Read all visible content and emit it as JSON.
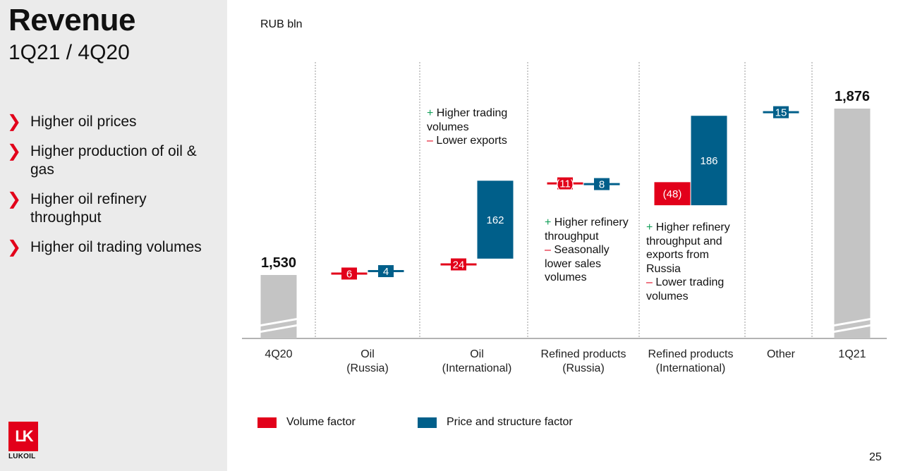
{
  "slide": {
    "title": "Revenue",
    "subtitle": "1Q21 / 4Q20",
    "bullets": [
      "Higher oil prices",
      "Higher production of oil & gas",
      "Higher oil refinery throughput",
      "Higher oil trading volumes"
    ],
    "logo_text": "LUKOIL",
    "page_number": "25",
    "colors": {
      "volume": "#e2001a",
      "price": "#005f8a",
      "total": "#c4c4c4",
      "plus": "#15a05a",
      "minus": "#e2001a"
    }
  },
  "chart_data": {
    "type": "bar",
    "subtype": "waterfall",
    "unit": "RUB bln",
    "start": {
      "label": "4Q20",
      "value": 1530,
      "value_label": "1,530"
    },
    "end": {
      "label": "1Q21",
      "value": 1876,
      "value_label": "1,876"
    },
    "categories": [
      [
        "4Q20"
      ],
      [
        "Oil",
        "(Russia)"
      ],
      [
        "Oil",
        "(International)"
      ],
      [
        "Refined products",
        "(Russia)"
      ],
      [
        "Refined products",
        "(International)"
      ],
      [
        "Other"
      ],
      [
        "1Q21"
      ]
    ],
    "steps": [
      {
        "category": 1,
        "factor": "volume",
        "value": 6,
        "label": "6"
      },
      {
        "category": 1,
        "factor": "price",
        "value": 4,
        "label": "4"
      },
      {
        "category": 2,
        "factor": "volume",
        "value": 24,
        "label": "24"
      },
      {
        "category": 2,
        "factor": "price",
        "value": 162,
        "label": "162"
      },
      {
        "category": 3,
        "factor": "volume",
        "value": -11,
        "label": "(11)"
      },
      {
        "category": 3,
        "factor": "price",
        "value": 8,
        "label": "8"
      },
      {
        "category": 4,
        "factor": "volume",
        "value": -48,
        "label": "(48)"
      },
      {
        "category": 4,
        "factor": "price",
        "value": 186,
        "label": "186"
      },
      {
        "category": 5,
        "factor": "price",
        "value": 15,
        "label": "15"
      }
    ],
    "legend": [
      {
        "factor": "volume",
        "label": "Volume factor"
      },
      {
        "factor": "price",
        "label": "Price and structure factor"
      }
    ],
    "annotations": [
      {
        "category": 2,
        "lines": [
          {
            "sign": "+",
            "text": "Higher trading"
          },
          {
            "sign": "",
            "text": "volumes"
          },
          {
            "sign": "–",
            "text": "Lower exports"
          }
        ]
      },
      {
        "category": 3,
        "lines": [
          {
            "sign": "+",
            "text": "Higher refinery"
          },
          {
            "sign": "",
            "text": "throughput"
          },
          {
            "sign": "–",
            "text": "Seasonally"
          },
          {
            "sign": "",
            "text": "lower sales"
          },
          {
            "sign": "",
            "text": "volumes"
          }
        ]
      },
      {
        "category": 4,
        "lines": [
          {
            "sign": "+",
            "text": "Higher refinery"
          },
          {
            "sign": "",
            "text": "throughput and"
          },
          {
            "sign": "",
            "text": "exports from"
          },
          {
            "sign": "",
            "text": "Russia"
          },
          {
            "sign": "–",
            "text": "Lower trading"
          },
          {
            "sign": "",
            "text": "volumes"
          }
        ]
      }
    ]
  }
}
